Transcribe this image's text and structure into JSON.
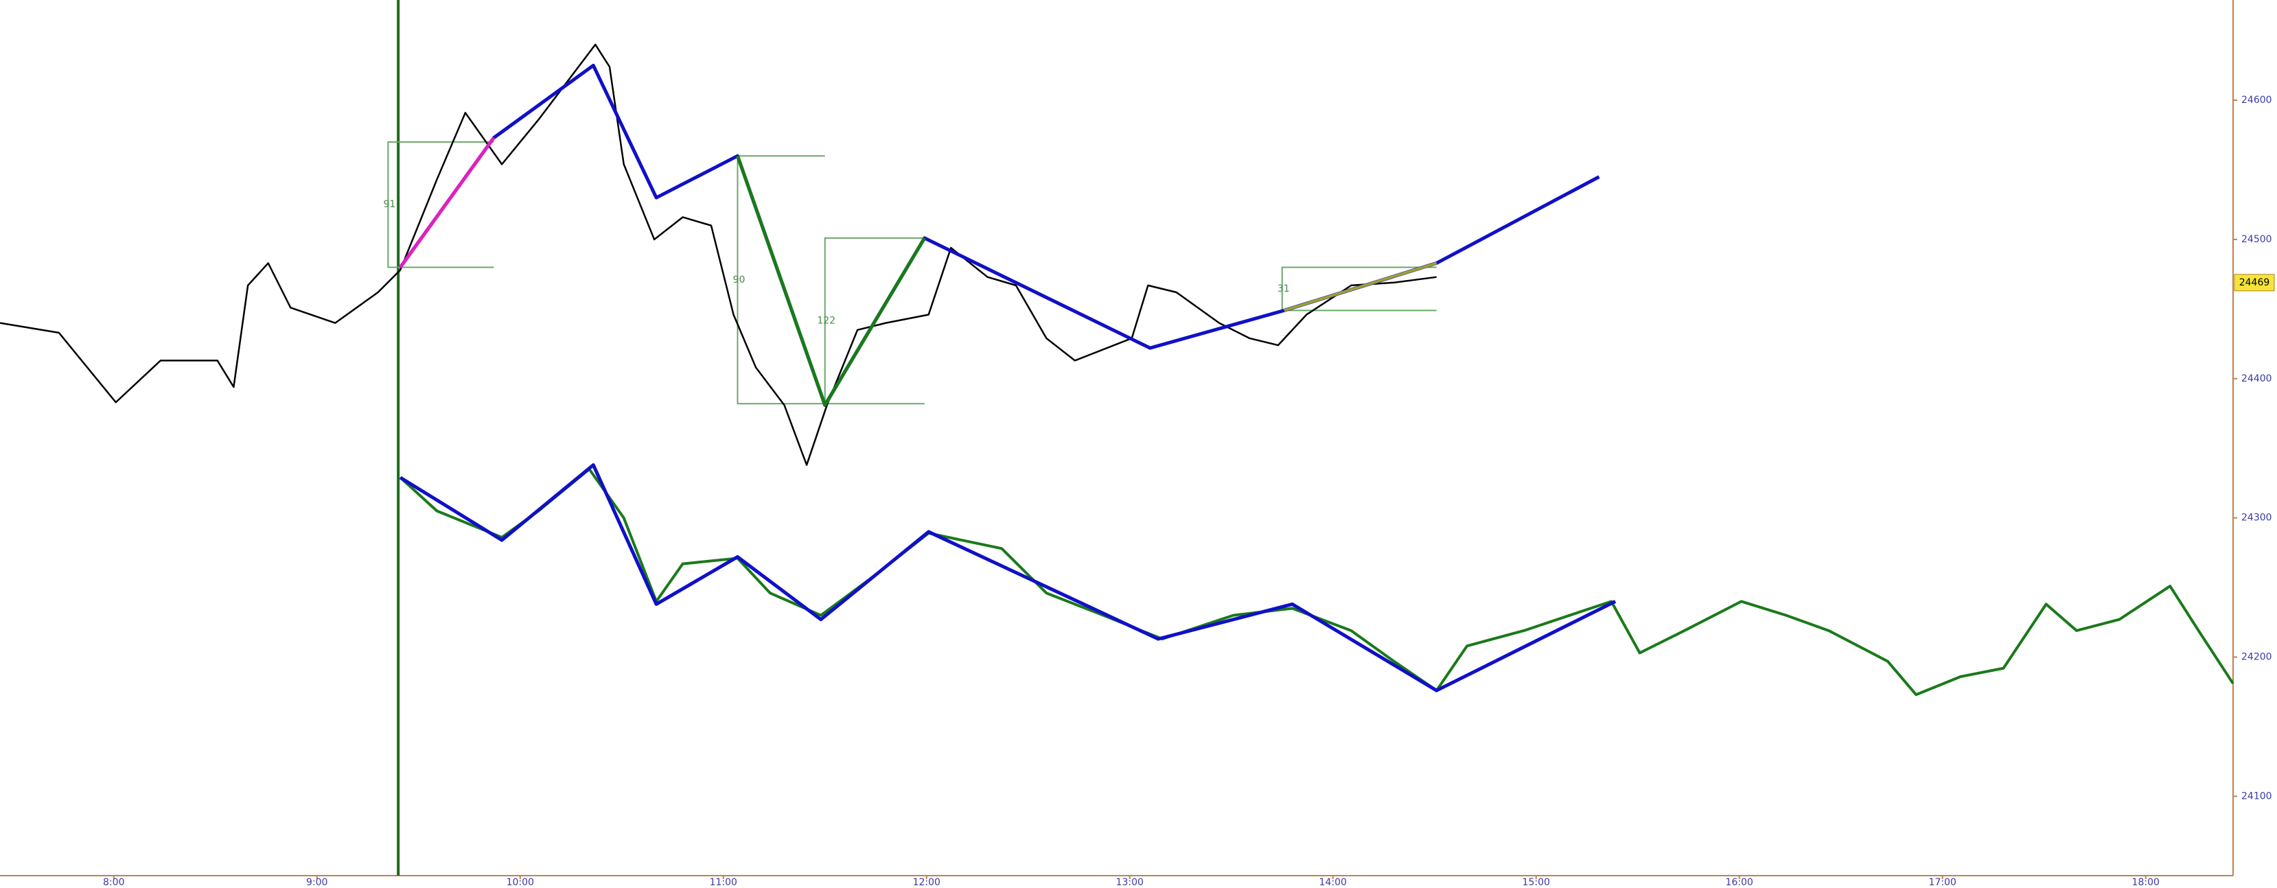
{
  "chart_data": {
    "type": "line",
    "xlim": [
      7.44,
      18.43
    ],
    "ylim": [
      24043,
      24672
    ],
    "xticks": [
      {
        "value": 8,
        "label": "8:00"
      },
      {
        "value": 9,
        "label": "9:00"
      },
      {
        "value": 10,
        "label": "10:00"
      },
      {
        "value": 11,
        "label": "11:00"
      },
      {
        "value": 12,
        "label": "12:00"
      },
      {
        "value": 13,
        "label": "13:00"
      },
      {
        "value": 14,
        "label": "14:00"
      },
      {
        "value": 15,
        "label": "15:00"
      },
      {
        "value": 16,
        "label": "16:00"
      },
      {
        "value": 17,
        "label": "17:00"
      },
      {
        "value": 18,
        "label": "18:00"
      }
    ],
    "yticks": [
      24100,
      24200,
      24300,
      24400,
      24500,
      24600
    ],
    "last_price": 24469,
    "session_start": 9.4,
    "annotations": [
      "91",
      "90",
      "122",
      "31"
    ],
    "series": [
      {
        "color": "#000000",
        "x": [
          7.44,
          7.73,
          8.01,
          8.23,
          8.51,
          8.59,
          8.66,
          8.76,
          8.87,
          9.09,
          9.3,
          9.41,
          9.59,
          9.73,
          9.91,
          10.09,
          10.37,
          10.44,
          10.51,
          10.66,
          10.8,
          10.94,
          11.05,
          11.16,
          11.3,
          11.41,
          11.51,
          11.66,
          11.8,
          12.01,
          12.12,
          12.3,
          12.44,
          12.59,
          12.73,
          13.01,
          13.09,
          13.23,
          13.44,
          13.59,
          13.73,
          13.87,
          14.09,
          14.3,
          14.51
        ],
        "values": [
          24440,
          24433,
          24383,
          24413,
          24413,
          24394,
          24467,
          24483,
          24451,
          24440,
          24462,
          24478,
          24543,
          24591,
          24554,
          24586,
          24640,
          24624,
          24554,
          24500,
          24516,
          24510,
          24446,
          24408,
          24381,
          24338,
          24381,
          24435,
          24440,
          24446,
          24494,
          24473,
          24467,
          24429,
          24413,
          24429,
          24467,
          24462,
          24440,
          24429,
          24424,
          24446,
          24467,
          24469,
          24473
        ]
      },
      {
        "color": "#1a7a1a",
        "x": [
          9.41,
          9.59,
          9.91,
          10.09,
          10.34,
          10.51,
          10.67,
          10.8,
          11.07,
          11.23,
          11.48,
          11.73,
          12.01,
          12.37,
          12.59,
          12.87,
          13.16,
          13.51,
          13.8,
          14.09,
          14.3,
          14.51,
          14.66,
          14.94,
          15.37,
          15.51,
          15.73,
          16.01,
          16.23,
          16.44,
          16.73,
          16.87,
          17.09,
          17.3,
          17.51,
          17.66,
          17.87,
          18.12,
          18.26,
          18.43
        ],
        "values": [
          24329,
          24305,
          24286,
          24305,
          24335,
          24300,
          24240,
          24267,
          24271,
          24246,
          24230,
          24257,
          24289,
          24278,
          24246,
          24230,
          24213,
          24230,
          24235,
          24219,
          24197,
          24176,
          24208,
          24219,
          24240,
          24203,
          24219,
          24240,
          24230,
          24219,
          24197,
          24173,
          24186,
          24192,
          24238,
          24219,
          24227,
          24251,
          24219,
          24181
        ]
      },
      {
        "color": "#1010c8",
        "x": [
          9.41,
          9.87,
          10.36,
          10.67,
          11.07,
          11.5,
          11.99,
          13.1,
          13.76,
          14.51,
          15.31
        ],
        "values": [
          24480,
          24573,
          24625,
          24530,
          24560,
          24381,
          24501,
          24422,
          24449,
          24483,
          24545
        ]
      },
      {
        "color": "#1010c8",
        "x": [
          9.41,
          9.91,
          10.36,
          10.67,
          11.07,
          11.48,
          12.01,
          13.14,
          13.8,
          14.51,
          15.39
        ],
        "values": [
          24329,
          24284,
          24338,
          24238,
          24272,
          24227,
          24290,
          24213,
          24238,
          24176,
          24240
        ]
      },
      {
        "color": "#e020c0",
        "x": [
          9.41,
          9.87
        ],
        "values": [
          24480,
          24573
        ]
      },
      {
        "color": "#1a7a1a",
        "x": [
          11.07,
          11.5,
          11.99
        ],
        "values": [
          24560,
          24381,
          24501
        ]
      },
      {
        "color": "#a0a030",
        "x": [
          13.76,
          14.51
        ],
        "values": [
          24449,
          24483
        ]
      }
    ]
  }
}
